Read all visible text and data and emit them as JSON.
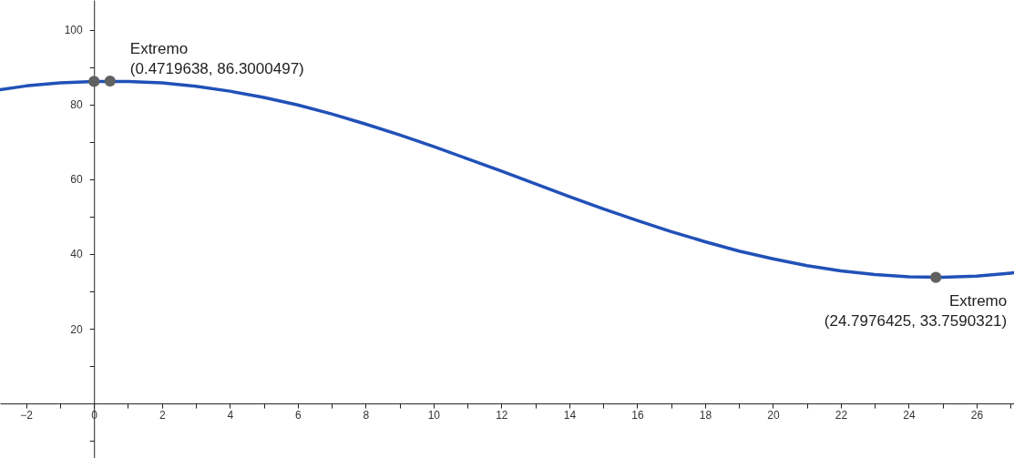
{
  "chart_data": {
    "type": "line",
    "x": [
      -2.77,
      -2,
      -1,
      0,
      1,
      2,
      3,
      4,
      5,
      6,
      7,
      8,
      9,
      10,
      11,
      12,
      13,
      14,
      15,
      16,
      17,
      18,
      19,
      20,
      21,
      22,
      23,
      24,
      25,
      26,
      27,
      27.1
    ],
    "series": [
      {
        "color": "#2151b8",
        "values": [
          84.0,
          85.0,
          85.8,
          86.2,
          86.2,
          85.8,
          84.9,
          83.6,
          81.9,
          79.9,
          77.5,
          74.8,
          71.9,
          68.8,
          65.5,
          62.2,
          58.8,
          55.4,
          52.1,
          49.0,
          46.0,
          43.3,
          40.8,
          38.7,
          36.9,
          35.5,
          34.5,
          33.9,
          33.8,
          34.1,
          34.9,
          35.0
        ]
      },
      {
        "type": "scatter",
        "color": "#616161",
        "x": [
          0,
          0.4719638,
          24.7976425
        ],
        "values": [
          86.2,
          86.3000497,
          33.7590321
        ]
      }
    ],
    "xlim": [
      -2.77,
      27.1
    ],
    "ylim": [
      -14.6,
      108
    ],
    "xticks": [
      {
        "value": -2,
        "label": "−2"
      },
      {
        "value": -1,
        "label": null
      },
      0,
      {
        "value": 1,
        "label": null
      },
      2,
      {
        "value": 3,
        "label": null
      },
      4,
      {
        "value": 5,
        "label": null
      },
      6,
      {
        "value": 7,
        "label": null
      },
      8,
      {
        "value": 9,
        "label": null
      },
      10,
      {
        "value": 11,
        "label": null
      },
      12,
      {
        "value": 13,
        "label": null
      },
      14,
      {
        "value": 15,
        "label": null
      },
      16,
      {
        "value": 17,
        "label": null
      },
      18,
      {
        "value": 19,
        "label": null
      },
      20,
      {
        "value": 21,
        "label": null
      },
      22,
      {
        "value": 23,
        "label": null
      },
      24,
      {
        "value": 25,
        "label": null
      },
      26,
      {
        "value": 27,
        "label": null
      }
    ],
    "yticks": [
      {
        "value": -10,
        "label": null
      },
      {
        "value": 10,
        "label": null
      },
      20,
      {
        "value": 30,
        "label": null
      },
      40,
      {
        "value": 50,
        "label": null
      },
      60,
      {
        "value": 70,
        "label": null
      },
      80,
      {
        "value": 90,
        "label": null
      },
      100
    ],
    "annotations": [
      {
        "text": "Extremo\n(0.4719638, 86.3000497)",
        "x": 0.4719638,
        "y": 86.3000497
      },
      {
        "text": "Extremo\n(24.7976425, 33.7590321)",
        "x": 24.7976425,
        "y": 33.7590321
      }
    ],
    "grid": false
  }
}
